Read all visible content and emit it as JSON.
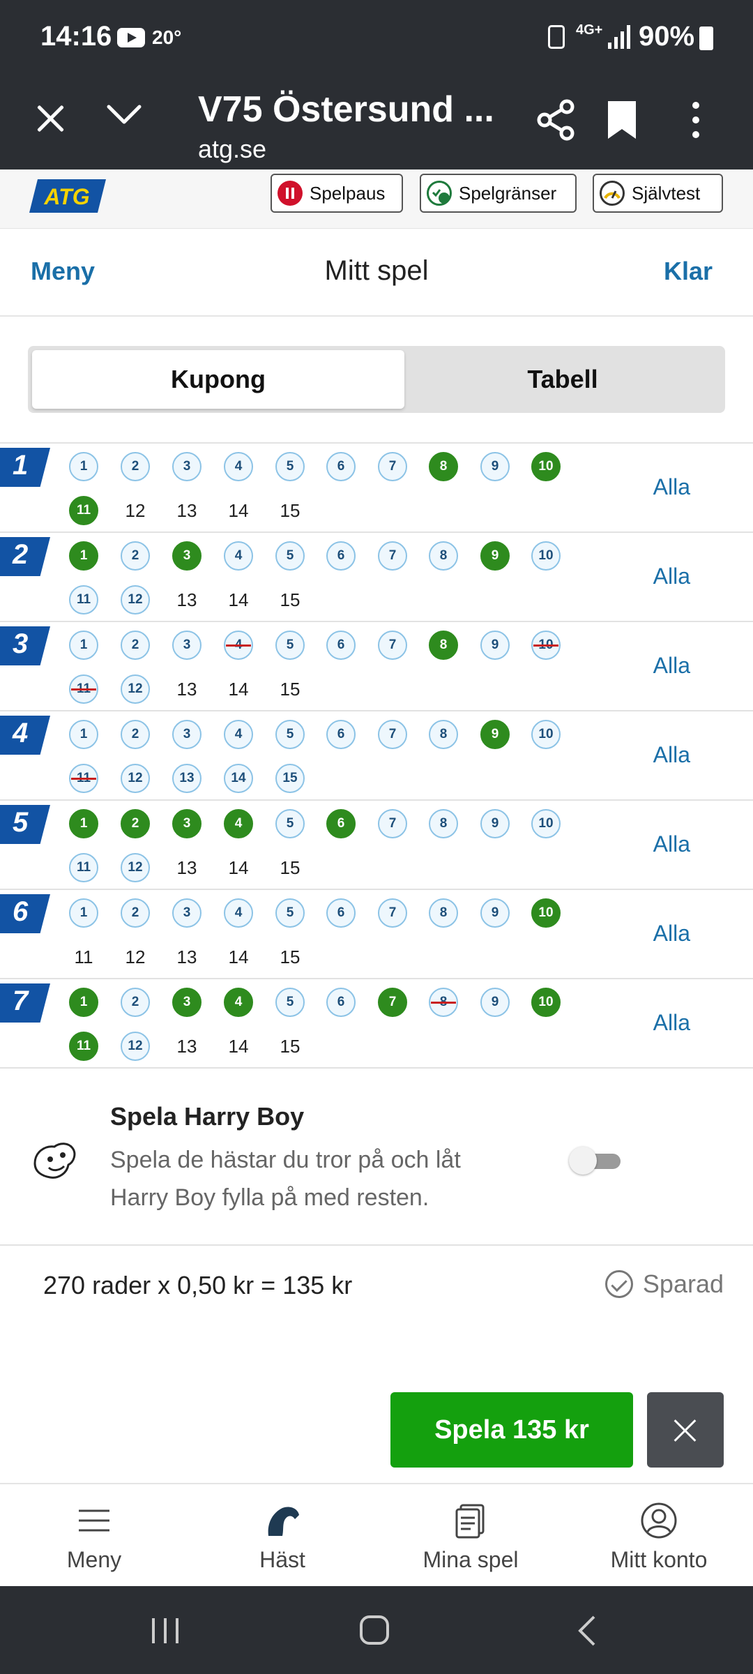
{
  "status": {
    "time": "14:16",
    "temperature": "20°",
    "network": "4G+",
    "battery": "90%"
  },
  "browser": {
    "title": "V75 Östersund ...",
    "url": "atg.se"
  },
  "brand": {
    "logo": "ATG",
    "pills": [
      {
        "label": "Spelpaus",
        "icon": "pause-icon"
      },
      {
        "label": "Spelgränser",
        "icon": "limits-icon"
      },
      {
        "label": "Självtest",
        "icon": "gauge-icon"
      }
    ]
  },
  "header": {
    "left": "Meny",
    "title": "Mitt spel",
    "right": "Klar"
  },
  "tabs": {
    "active": "Kupong",
    "inactive": "Tabell"
  },
  "races": [
    {
      "num": "1",
      "horses": [
        [
          "1",
          "avail"
        ],
        [
          "2",
          "avail"
        ],
        [
          "3",
          "avail"
        ],
        [
          "4",
          "avail"
        ],
        [
          "5",
          "avail"
        ],
        [
          "6",
          "avail"
        ],
        [
          "7",
          "avail"
        ],
        [
          "8",
          "sel"
        ],
        [
          "9",
          "avail"
        ],
        [
          "10",
          "sel"
        ],
        [
          "11",
          "sel"
        ],
        [
          "12",
          "plain"
        ],
        [
          "13",
          "plain"
        ],
        [
          "14",
          "plain"
        ],
        [
          "15",
          "plain"
        ]
      ]
    },
    {
      "num": "2",
      "horses": [
        [
          "1",
          "sel"
        ],
        [
          "2",
          "avail"
        ],
        [
          "3",
          "sel"
        ],
        [
          "4",
          "avail"
        ],
        [
          "5",
          "avail"
        ],
        [
          "6",
          "avail"
        ],
        [
          "7",
          "avail"
        ],
        [
          "8",
          "avail"
        ],
        [
          "9",
          "sel"
        ],
        [
          "10",
          "avail"
        ],
        [
          "11",
          "avail"
        ],
        [
          "12",
          "avail"
        ],
        [
          "13",
          "plain"
        ],
        [
          "14",
          "plain"
        ],
        [
          "15",
          "plain"
        ]
      ]
    },
    {
      "num": "3",
      "horses": [
        [
          "1",
          "avail"
        ],
        [
          "2",
          "avail"
        ],
        [
          "3",
          "avail"
        ],
        [
          "4",
          "scr"
        ],
        [
          "5",
          "avail"
        ],
        [
          "6",
          "avail"
        ],
        [
          "7",
          "avail"
        ],
        [
          "8",
          "sel"
        ],
        [
          "9",
          "avail"
        ],
        [
          "10",
          "scr"
        ],
        [
          "11",
          "scr"
        ],
        [
          "12",
          "avail"
        ],
        [
          "13",
          "plain"
        ],
        [
          "14",
          "plain"
        ],
        [
          "15",
          "plain"
        ]
      ]
    },
    {
      "num": "4",
      "horses": [
        [
          "1",
          "avail"
        ],
        [
          "2",
          "avail"
        ],
        [
          "3",
          "avail"
        ],
        [
          "4",
          "avail"
        ],
        [
          "5",
          "avail"
        ],
        [
          "6",
          "avail"
        ],
        [
          "7",
          "avail"
        ],
        [
          "8",
          "avail"
        ],
        [
          "9",
          "sel"
        ],
        [
          "10",
          "avail"
        ],
        [
          "11",
          "scr"
        ],
        [
          "12",
          "avail"
        ],
        [
          "13",
          "avail"
        ],
        [
          "14",
          "avail"
        ],
        [
          "15",
          "avail"
        ]
      ]
    },
    {
      "num": "5",
      "horses": [
        [
          "1",
          "sel"
        ],
        [
          "2",
          "sel"
        ],
        [
          "3",
          "sel"
        ],
        [
          "4",
          "sel"
        ],
        [
          "5",
          "avail"
        ],
        [
          "6",
          "sel"
        ],
        [
          "7",
          "avail"
        ],
        [
          "8",
          "avail"
        ],
        [
          "9",
          "avail"
        ],
        [
          "10",
          "avail"
        ],
        [
          "11",
          "avail"
        ],
        [
          "12",
          "avail"
        ],
        [
          "13",
          "plain"
        ],
        [
          "14",
          "plain"
        ],
        [
          "15",
          "plain"
        ]
      ]
    },
    {
      "num": "6",
      "horses": [
        [
          "1",
          "avail"
        ],
        [
          "2",
          "avail"
        ],
        [
          "3",
          "avail"
        ],
        [
          "4",
          "avail"
        ],
        [
          "5",
          "avail"
        ],
        [
          "6",
          "avail"
        ],
        [
          "7",
          "avail"
        ],
        [
          "8",
          "avail"
        ],
        [
          "9",
          "avail"
        ],
        [
          "10",
          "sel"
        ],
        [
          "11",
          "plain"
        ],
        [
          "12",
          "plain"
        ],
        [
          "13",
          "plain"
        ],
        [
          "14",
          "plain"
        ],
        [
          "15",
          "plain"
        ]
      ]
    },
    {
      "num": "7",
      "horses": [
        [
          "1",
          "sel"
        ],
        [
          "2",
          "avail"
        ],
        [
          "3",
          "sel"
        ],
        [
          "4",
          "sel"
        ],
        [
          "5",
          "avail"
        ],
        [
          "6",
          "avail"
        ],
        [
          "7",
          "sel"
        ],
        [
          "8",
          "scr"
        ],
        [
          "9",
          "avail"
        ],
        [
          "10",
          "sel"
        ],
        [
          "11",
          "sel"
        ],
        [
          "12",
          "avail"
        ],
        [
          "13",
          "plain"
        ],
        [
          "14",
          "plain"
        ],
        [
          "15",
          "plain"
        ]
      ]
    }
  ],
  "race_all_label": "Alla",
  "harry": {
    "title": "Spela Harry Boy",
    "desc": "Spela de hästar du tror på och låt Harry Boy fylla på med resten."
  },
  "summary": {
    "text": "270 rader x 0,50 kr = 135 kr",
    "saved": "Sparad"
  },
  "play_button": "Spela 135 kr",
  "bottom_nav": [
    {
      "label": "Meny",
      "icon": "menu-icon"
    },
    {
      "label": "Häst",
      "icon": "horse-icon"
    },
    {
      "label": "Mina spel",
      "icon": "coupons-icon"
    },
    {
      "label": "Mitt konto",
      "icon": "account-icon"
    }
  ],
  "colors": {
    "selected": "#2e8b1e",
    "link": "#1a6fa8",
    "race_badge": "#1253a4",
    "play": "#14a00e"
  }
}
